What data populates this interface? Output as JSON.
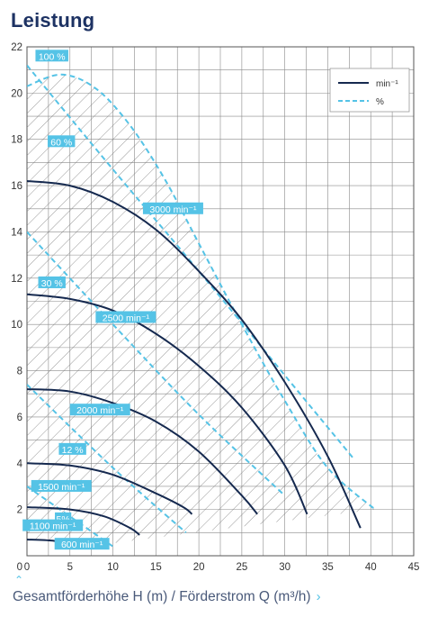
{
  "title": "Leistung",
  "footer": {
    "caption": "Gesamtförderhöhe H (m) / Förderstrom Q (m³/h)",
    "expand_icon": "chevron-up-icon",
    "link_icon": "chevron-right-icon"
  },
  "colors": {
    "title": "#1d3263",
    "speed_curve": "#15294f",
    "efficiency_curve": "#55c3e6",
    "label_bg": "#55c3e6",
    "grid": "#8a8a8a",
    "hatch": "#777777",
    "accent": "#55c3e6"
  },
  "chart_data": {
    "type": "line",
    "title": "Leistung",
    "xlabel": "Gesamtförderhöhe H (m) / Förderstrom Q (m³/h)",
    "ylabel": "",
    "xlim": [
      0,
      45
    ],
    "ylim": [
      0,
      22
    ],
    "xticks": [
      0,
      5,
      10,
      15,
      20,
      25,
      30,
      35,
      40,
      45
    ],
    "yticks": [
      2,
      4,
      6,
      8,
      10,
      12,
      14,
      16,
      18,
      20,
      22
    ],
    "grid": true,
    "legend": {
      "position": "top-right",
      "entries": [
        {
          "label": "min⁻¹",
          "style": "solid",
          "color": "#15294f"
        },
        {
          "label": "%",
          "style": "dashed",
          "color": "#55c3e6"
        }
      ]
    },
    "speed_curves": [
      {
        "label": "3000 min⁻¹",
        "points": [
          [
            0,
            16.2
          ],
          [
            5,
            16.0
          ],
          [
            10,
            15.3
          ],
          [
            15,
            14.1
          ],
          [
            20,
            12.3
          ],
          [
            25,
            10.2
          ],
          [
            30,
            7.5
          ],
          [
            35,
            4.3
          ],
          [
            38.8,
            1.2
          ]
        ],
        "label_at": [
          17,
          15.0
        ]
      },
      {
        "label": "2500 min⁻¹",
        "points": [
          [
            0,
            11.3
          ],
          [
            5,
            11.1
          ],
          [
            10,
            10.6
          ],
          [
            15,
            9.6
          ],
          [
            20,
            8.2
          ],
          [
            25,
            6.4
          ],
          [
            30,
            3.9
          ],
          [
            32.6,
            1.8
          ]
        ],
        "label_at": [
          11.5,
          10.3
        ]
      },
      {
        "label": "2000 min⁻¹",
        "points": [
          [
            0,
            7.2
          ],
          [
            5,
            7.1
          ],
          [
            10,
            6.6
          ],
          [
            15,
            5.8
          ],
          [
            20,
            4.5
          ],
          [
            25,
            2.6
          ],
          [
            26.8,
            1.8
          ]
        ],
        "label_at": [
          8.5,
          6.3
        ]
      },
      {
        "label": "1500 min⁻¹",
        "points": [
          [
            0,
            4.0
          ],
          [
            5,
            3.9
          ],
          [
            10,
            3.5
          ],
          [
            15,
            2.7
          ],
          [
            18.2,
            2.1
          ],
          [
            19.2,
            1.8
          ]
        ],
        "label_at": [
          4,
          3.0
        ]
      },
      {
        "label": "1100 min⁻¹",
        "points": [
          [
            0,
            2.1
          ],
          [
            5,
            2.0
          ],
          [
            9,
            1.7
          ],
          [
            12,
            1.2
          ],
          [
            13.1,
            0.9
          ]
        ],
        "label_at": [
          3,
          1.3
        ]
      },
      {
        "label": "600 min⁻¹",
        "points": [
          [
            0,
            0.7
          ],
          [
            3,
            0.65
          ],
          [
            5,
            0.5
          ],
          [
            6,
            0.35
          ]
        ],
        "label_at": [
          6.4,
          0.5
        ]
      }
    ],
    "efficiency_curves": [
      {
        "label": "100 %",
        "points": [
          [
            0,
            20.3
          ],
          [
            4,
            20.8
          ],
          [
            8,
            20.2
          ],
          [
            12,
            18.6
          ],
          [
            16,
            16.3
          ],
          [
            20,
            13.5
          ],
          [
            25,
            10.0
          ],
          [
            30,
            6.7
          ],
          [
            35,
            3.8
          ],
          [
            40.5,
            2.0
          ]
        ],
        "label_at": [
          2.9,
          21.6
        ]
      },
      {
        "label": "60 %",
        "points": [
          [
            0,
            21.2
          ],
          [
            10,
            16.7
          ],
          [
            20,
            12.3
          ],
          [
            30,
            7.8
          ],
          [
            38,
            4.2
          ]
        ],
        "label_at": [
          4,
          17.9
        ]
      },
      {
        "label": "30 %",
        "points": [
          [
            0,
            14.0
          ],
          [
            10,
            10.0
          ],
          [
            20,
            6.1
          ],
          [
            30,
            2.6
          ]
        ],
        "label_at": [
          2.9,
          11.8
        ]
      },
      {
        "label": "12 %",
        "points": [
          [
            0,
            7.4
          ],
          [
            10,
            3.8
          ],
          [
            18.5,
            1.0
          ]
        ],
        "label_at": [
          5.3,
          4.6
        ]
      },
      {
        "label": "5%",
        "points": [
          [
            0,
            3.0
          ],
          [
            10,
            0.4
          ]
        ],
        "label_at": [
          4.2,
          1.6
        ]
      }
    ],
    "operating_region": [
      [
        0,
        20.3
      ],
      [
        4,
        20.8
      ],
      [
        8,
        20.2
      ],
      [
        12,
        18.6
      ],
      [
        16,
        16.3
      ],
      [
        20,
        13.5
      ],
      [
        25,
        10.0
      ],
      [
        30,
        6.7
      ],
      [
        35,
        3.8
      ],
      [
        40.5,
        2.0
      ],
      [
        6,
        0.35
      ],
      [
        5,
        0.5
      ],
      [
        3,
        0.65
      ],
      [
        0,
        0.7
      ]
    ]
  }
}
